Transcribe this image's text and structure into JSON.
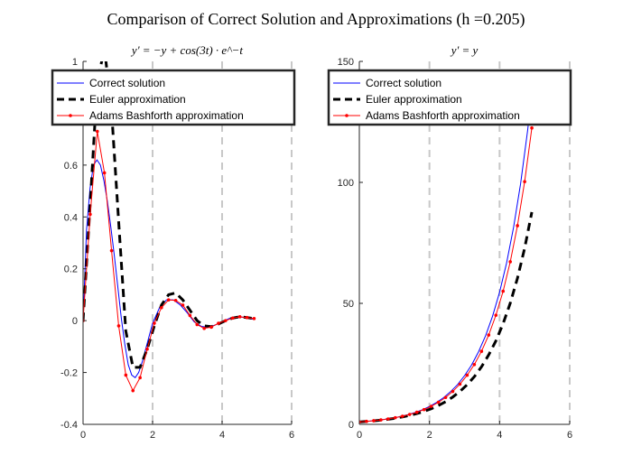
{
  "figure": {
    "title": "Comparison of Correct Solution and Approximations (h =0.205)"
  },
  "chart_data": [
    {
      "type": "line",
      "title": "y' = −y + cos(3t) · e^−t",
      "xlim": [
        0,
        6
      ],
      "ylim": [
        -0.4,
        1
      ],
      "xticks": [
        0,
        2,
        4,
        6
      ],
      "yticks": [
        -0.4,
        -0.2,
        0,
        0.2,
        0.4,
        0.6,
        1
      ],
      "grid": "x-dashed",
      "legend": "top",
      "series": [
        {
          "name": "Correct solution",
          "color": "#0000ff",
          "style": "solid",
          "x": [
            0,
            0.1,
            0.2,
            0.3,
            0.4,
            0.5,
            0.6,
            0.7,
            0.8,
            0.9,
            1.0,
            1.1,
            1.2,
            1.3,
            1.4,
            1.5,
            1.6,
            1.7,
            1.8,
            1.9,
            2.0,
            2.2,
            2.4,
            2.6,
            2.8,
            3.0,
            3.2,
            3.4,
            3.6,
            3.8,
            4.0,
            4.2,
            4.4,
            4.6,
            4.8,
            4.92
          ],
          "y": [
            0,
            0.35,
            0.51,
            0.6,
            0.62,
            0.6,
            0.54,
            0.46,
            0.36,
            0.25,
            0.13,
            0.01,
            -0.09,
            -0.17,
            -0.21,
            -0.22,
            -0.2,
            -0.16,
            -0.11,
            -0.06,
            -0.01,
            0.05,
            0.08,
            0.08,
            0.06,
            0.03,
            -0.005,
            -0.022,
            -0.026,
            -0.017,
            -0.005,
            0.008,
            0.014,
            0.013,
            0.008,
            0.005
          ]
        },
        {
          "name": "Euler approximation",
          "color": "#000000",
          "style": "dashed",
          "x": [
            0,
            0.205,
            0.41,
            0.615,
            0.82,
            1.025,
            1.23,
            1.435,
            1.64,
            1.845,
            2.05,
            2.255,
            2.46,
            2.665,
            2.87,
            3.075,
            3.28,
            3.485,
            3.69,
            3.895,
            4.1,
            4.305,
            4.51,
            4.715,
            4.92
          ],
          "y": [
            0,
            0.45,
            0.92,
            1.05,
            0.81,
            0.38,
            -0.04,
            -0.18,
            -0.18,
            -0.11,
            -0.02,
            0.06,
            0.1,
            0.107,
            0.08,
            0.04,
            0.0,
            -0.02,
            -0.023,
            -0.013,
            0.0,
            0.01,
            0.015,
            0.012,
            0.008
          ]
        },
        {
          "name": "Adams Bashforth approximation",
          "color": "#ff0000",
          "style": "solid-dot",
          "x": [
            0,
            0.205,
            0.41,
            0.615,
            0.82,
            1.025,
            1.23,
            1.435,
            1.64,
            1.845,
            2.05,
            2.255,
            2.46,
            2.665,
            2.87,
            3.075,
            3.28,
            3.485,
            3.69,
            3.895,
            4.1,
            4.305,
            4.51,
            4.715,
            4.92
          ],
          "y": [
            0,
            0.41,
            0.73,
            0.57,
            0.27,
            -0.02,
            -0.21,
            -0.27,
            -0.22,
            -0.11,
            -0.01,
            0.05,
            0.08,
            0.078,
            0.06,
            0.02,
            -0.015,
            -0.03,
            -0.025,
            -0.01,
            0.0,
            0.01,
            0.015,
            0.012,
            0.008
          ]
        }
      ]
    },
    {
      "type": "line",
      "title": "y' = y",
      "xlim": [
        0,
        6
      ],
      "ylim": [
        0,
        150
      ],
      "xticks": [
        0,
        2,
        4,
        6
      ],
      "yticks": [
        0,
        50,
        100,
        150
      ],
      "grid": "x-dashed",
      "legend": "top",
      "series": [
        {
          "name": "Correct solution",
          "color": "#0000ff",
          "style": "solid",
          "x": [
            0,
            0.2,
            0.4,
            0.6,
            0.8,
            1.0,
            1.2,
            1.4,
            1.6,
            1.8,
            2.0,
            2.2,
            2.4,
            2.6,
            2.8,
            3.0,
            3.2,
            3.4,
            3.6,
            3.8,
            4.0,
            4.2,
            4.4,
            4.6,
            4.8,
            4.92
          ],
          "y": [
            1.0,
            1.22,
            1.49,
            1.82,
            2.23,
            2.72,
            3.32,
            4.06,
            4.95,
            6.05,
            7.39,
            9.03,
            11.0,
            13.5,
            16.4,
            20.1,
            24.5,
            30.0,
            36.6,
            44.7,
            54.6,
            66.7,
            81.5,
            99.5,
            121.5,
            137.0
          ]
        },
        {
          "name": "Euler approximation",
          "color": "#000000",
          "style": "dashed",
          "x": [
            0,
            0.205,
            0.41,
            0.615,
            0.82,
            1.025,
            1.23,
            1.435,
            1.64,
            1.845,
            2.05,
            2.255,
            2.46,
            2.665,
            2.87,
            3.075,
            3.28,
            3.485,
            3.69,
            3.895,
            4.1,
            4.305,
            4.51,
            4.715,
            4.92
          ],
          "y": [
            1.0,
            1.2,
            1.45,
            1.75,
            2.11,
            2.54,
            3.06,
            3.69,
            4.44,
            5.35,
            6.45,
            7.77,
            9.37,
            11.3,
            13.6,
            16.4,
            19.7,
            23.8,
            28.7,
            34.5,
            41.6,
            50.1,
            60.4,
            72.8,
            87.7
          ]
        },
        {
          "name": "Adams Bashforth approximation",
          "color": "#ff0000",
          "style": "solid-dot",
          "x": [
            0,
            0.205,
            0.41,
            0.615,
            0.82,
            1.025,
            1.23,
            1.435,
            1.64,
            1.845,
            2.05,
            2.255,
            2.46,
            2.665,
            2.87,
            3.075,
            3.28,
            3.485,
            3.69,
            3.895,
            4.1,
            4.305,
            4.51,
            4.715,
            4.92
          ],
          "y": [
            1.0,
            1.23,
            1.5,
            1.83,
            2.24,
            2.74,
            3.35,
            4.09,
            5.0,
            6.1,
            7.46,
            9.1,
            11.1,
            13.6,
            16.6,
            20.3,
            24.7,
            30.2,
            36.9,
            45.1,
            55.0,
            67.2,
            82.1,
            100.3,
            122.5
          ]
        }
      ]
    }
  ]
}
